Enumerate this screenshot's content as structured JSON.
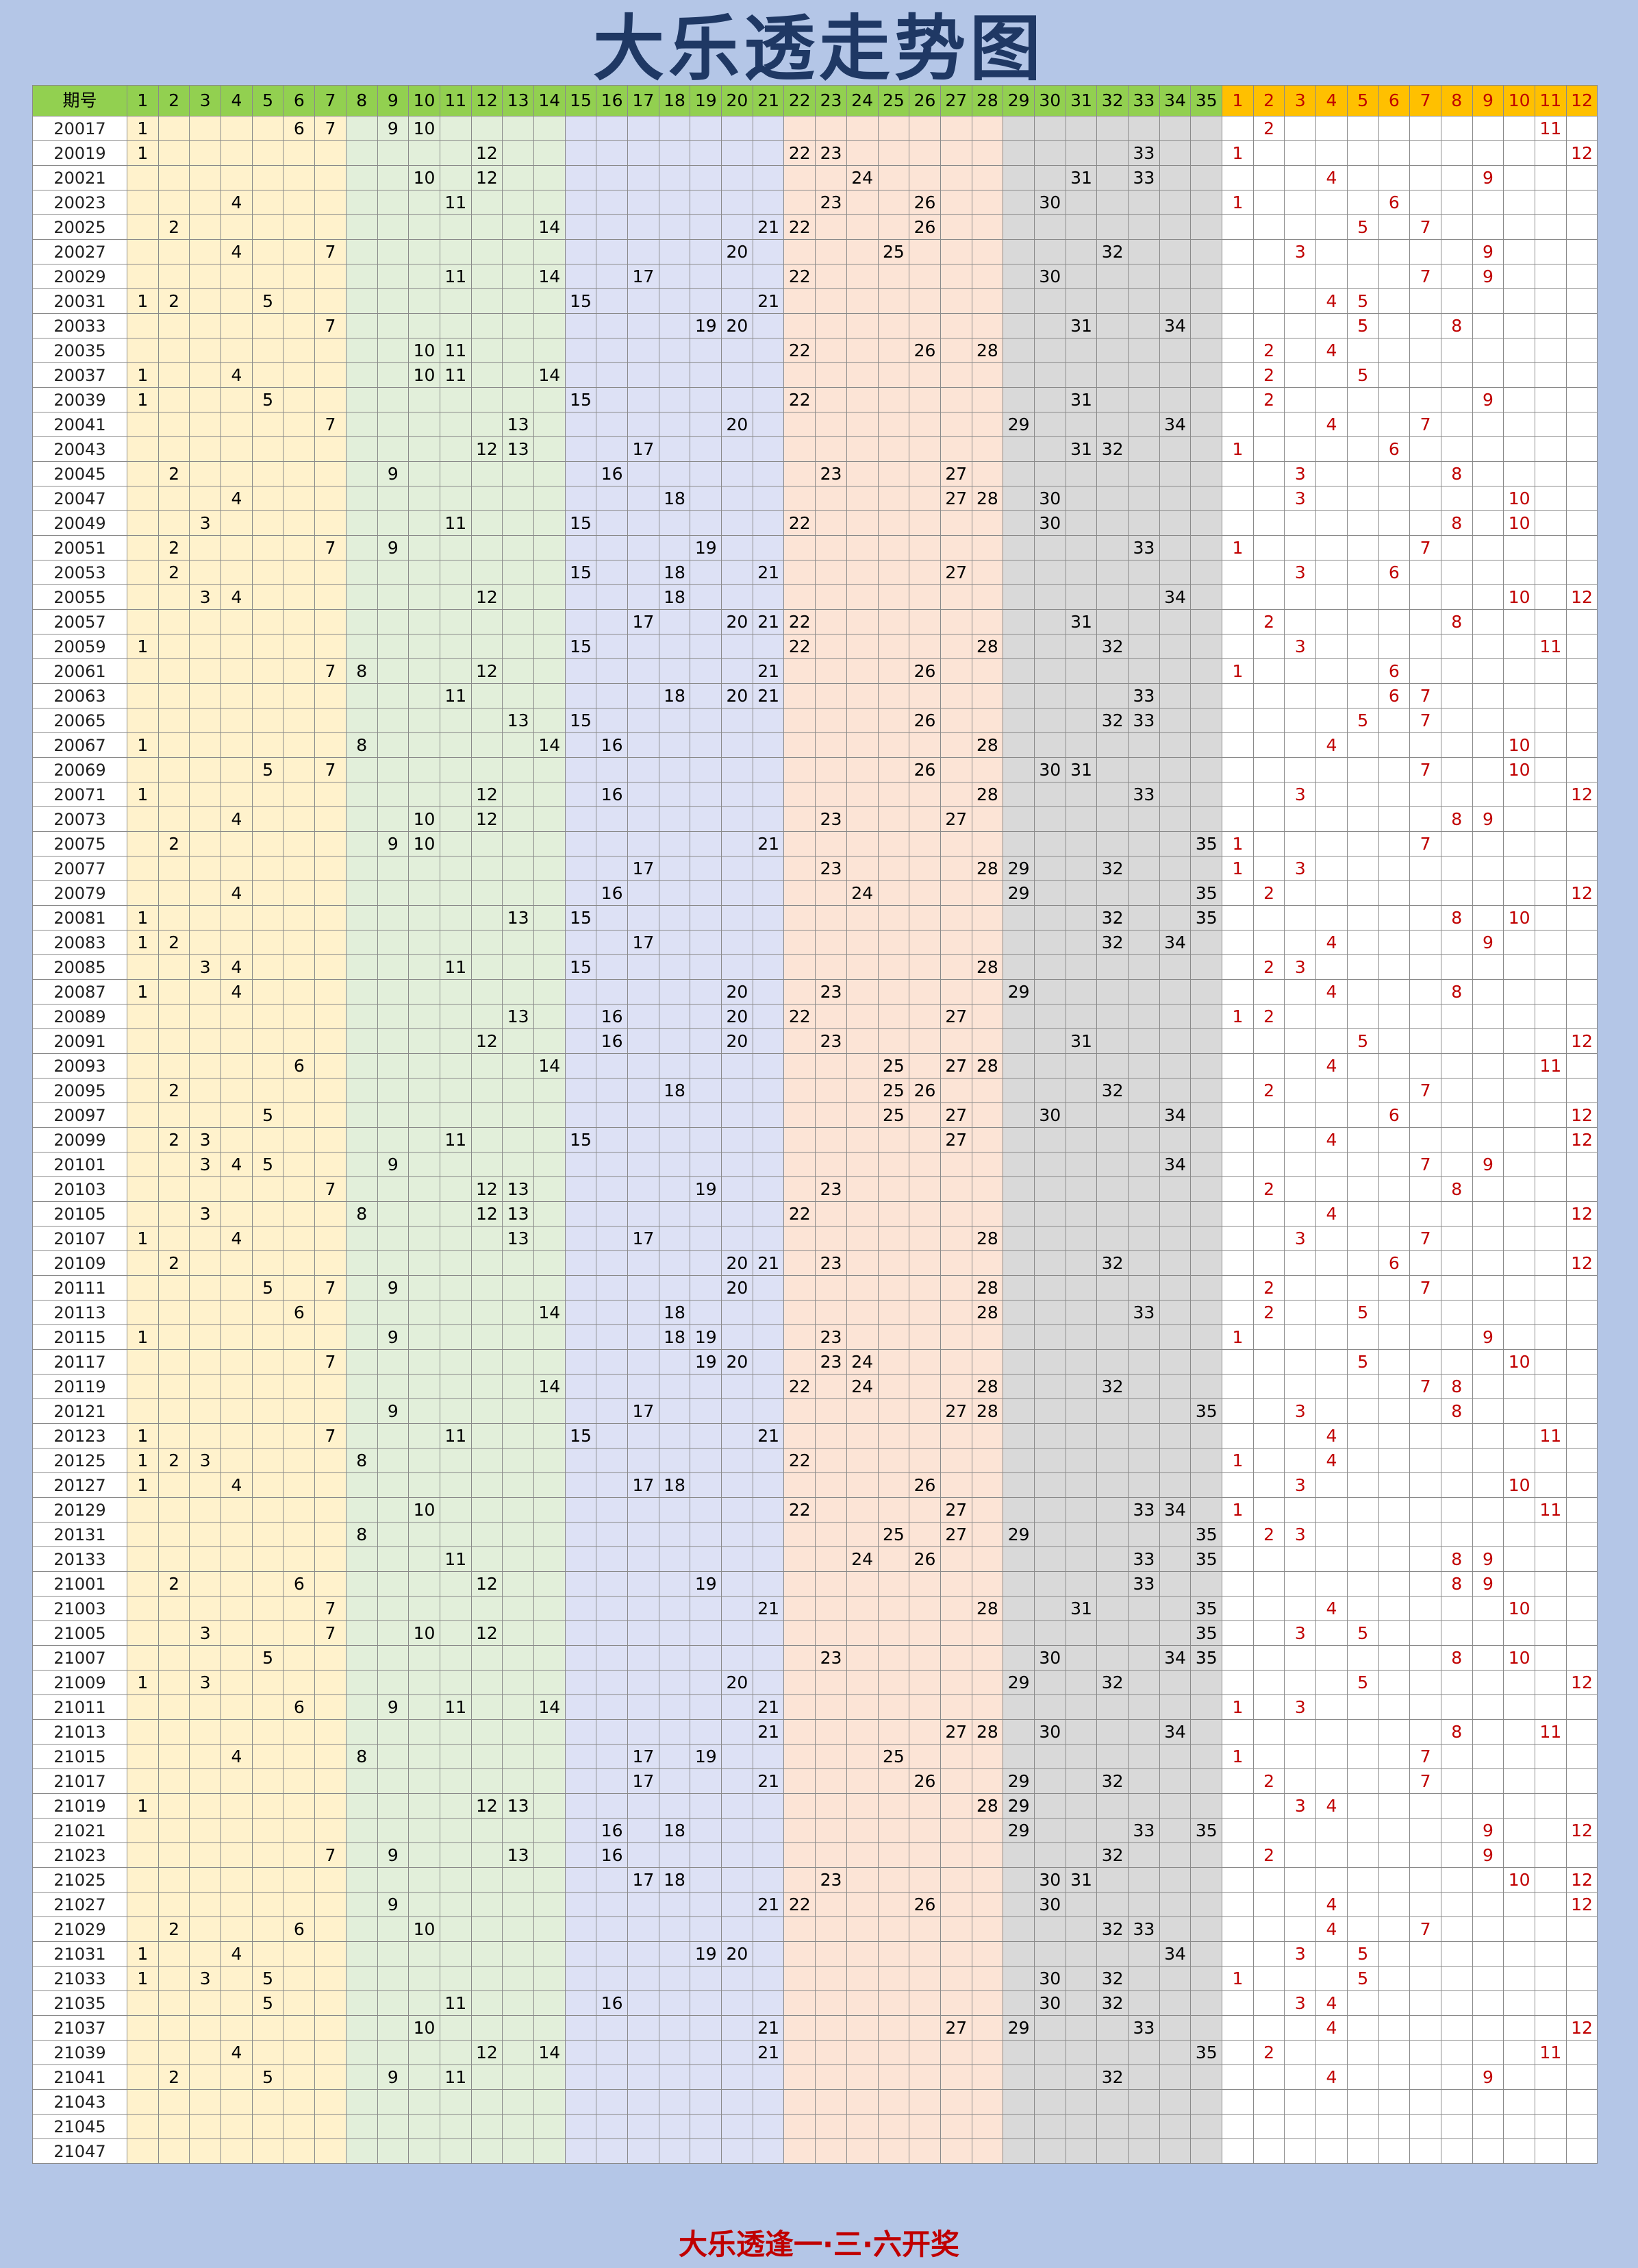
{
  "title": "大乐透走势图",
  "footer": "大乐透逢一·三·六开奖",
  "header": {
    "period_label": "期号",
    "front_numbers": [
      "1",
      "2",
      "3",
      "4",
      "5",
      "6",
      "7",
      "8",
      "9",
      "10",
      "11",
      "12",
      "13",
      "14",
      "15",
      "16",
      "17",
      "18",
      "19",
      "20",
      "21",
      "22",
      "23",
      "24",
      "25",
      "26",
      "27",
      "28",
      "29",
      "30",
      "31",
      "32",
      "33",
      "34",
      "35"
    ],
    "back_numbers": [
      "1",
      "2",
      "3",
      "4",
      "5",
      "6",
      "7",
      "8",
      "9",
      "10",
      "11",
      "12"
    ]
  },
  "colors": {
    "header_front": "#92d050",
    "header_back": "#ffc000",
    "zone_1_7": "#fff2cc",
    "zone_8_14": "#e2efda",
    "zone_15_21": "#dde1f5",
    "zone_22_28": "#fce4d6",
    "zone_29_35": "#d9d9d9",
    "back_number_text": "#c00000"
  },
  "draws": [
    {
      "period": "20017",
      "front": [
        1,
        6,
        7,
        9,
        10
      ],
      "back": [
        2,
        11
      ]
    },
    {
      "period": "20019",
      "front": [
        1,
        12,
        22,
        23,
        33
      ],
      "back": [
        1,
        12
      ]
    },
    {
      "period": "20021",
      "front": [
        10,
        12,
        24,
        31,
        33
      ],
      "back": [
        4,
        9
      ]
    },
    {
      "period": "20023",
      "front": [
        4,
        11,
        23,
        26,
        30
      ],
      "back": [
        1,
        6
      ]
    },
    {
      "period": "20025",
      "front": [
        2,
        14,
        21,
        22,
        26
      ],
      "back": [
        5,
        7
      ]
    },
    {
      "period": "20027",
      "front": [
        4,
        7,
        20,
        25,
        32
      ],
      "back": [
        3,
        9
      ]
    },
    {
      "period": "20029",
      "front": [
        11,
        14,
        17,
        22,
        30
      ],
      "back": [
        7,
        9
      ]
    },
    {
      "period": "20031",
      "front": [
        1,
        2,
        5,
        15,
        21
      ],
      "back": [
        4,
        5
      ]
    },
    {
      "period": "20033",
      "front": [
        7,
        19,
        20,
        31,
        34
      ],
      "back": [
        5,
        8
      ]
    },
    {
      "period": "20035",
      "front": [
        10,
        11,
        22,
        26,
        28
      ],
      "back": [
        2,
        4
      ]
    },
    {
      "period": "20037",
      "front": [
        1,
        4,
        10,
        11,
        14
      ],
      "back": [
        2,
        5
      ]
    },
    {
      "period": "20039",
      "front": [
        1,
        5,
        15,
        22,
        31
      ],
      "back": [
        2,
        9
      ]
    },
    {
      "period": "20041",
      "front": [
        7,
        13,
        20,
        29,
        34
      ],
      "back": [
        4,
        7
      ]
    },
    {
      "period": "20043",
      "front": [
        12,
        13,
        17,
        31,
        32
      ],
      "back": [
        1,
        6
      ]
    },
    {
      "period": "20045",
      "front": [
        2,
        9,
        16,
        23,
        27
      ],
      "back": [
        3,
        8
      ]
    },
    {
      "period": "20047",
      "front": [
        4,
        18,
        27,
        28,
        30
      ],
      "back": [
        3,
        10
      ]
    },
    {
      "period": "20049",
      "front": [
        3,
        11,
        15,
        22,
        30
      ],
      "back": [
        8,
        10
      ]
    },
    {
      "period": "20051",
      "front": [
        2,
        7,
        9,
        19,
        33
      ],
      "back": [
        1,
        7
      ]
    },
    {
      "period": "20053",
      "front": [
        2,
        15,
        18,
        21,
        27
      ],
      "back": [
        3,
        6
      ]
    },
    {
      "period": "20055",
      "front": [
        3,
        4,
        12,
        18,
        34
      ],
      "back": [
        10,
        12
      ]
    },
    {
      "period": "20057",
      "front": [
        17,
        20,
        21,
        22,
        31
      ],
      "back": [
        2,
        8
      ]
    },
    {
      "period": "20059",
      "front": [
        1,
        15,
        22,
        28,
        32
      ],
      "back": [
        3,
        11
      ]
    },
    {
      "period": "20061",
      "front": [
        7,
        8,
        12,
        21,
        26
      ],
      "back": [
        1,
        6
      ]
    },
    {
      "period": "20063",
      "front": [
        11,
        18,
        20,
        21,
        33
      ],
      "back": [
        6,
        7
      ]
    },
    {
      "period": "20065",
      "front": [
        13,
        15,
        26,
        32,
        33
      ],
      "back": [
        5,
        7
      ]
    },
    {
      "period": "20067",
      "front": [
        1,
        8,
        14,
        16,
        28
      ],
      "back": [
        4,
        10
      ]
    },
    {
      "period": "20069",
      "front": [
        5,
        7,
        26,
        30,
        31
      ],
      "back": [
        7,
        10
      ]
    },
    {
      "period": "20071",
      "front": [
        1,
        12,
        16,
        28,
        33
      ],
      "back": [
        3,
        12
      ]
    },
    {
      "period": "20073",
      "front": [
        4,
        10,
        12,
        23,
        27
      ],
      "back": [
        8,
        9
      ]
    },
    {
      "period": "20075",
      "front": [
        2,
        9,
        10,
        21,
        35
      ],
      "back": [
        1,
        7
      ]
    },
    {
      "period": "20077",
      "front": [
        17,
        23,
        28,
        29,
        32
      ],
      "back": [
        1,
        3
      ]
    },
    {
      "period": "20079",
      "front": [
        4,
        16,
        24,
        29,
        35
      ],
      "back": [
        2,
        12
      ]
    },
    {
      "period": "20081",
      "front": [
        1,
        13,
        15,
        32,
        35
      ],
      "back": [
        8,
        10
      ]
    },
    {
      "period": "20083",
      "front": [
        1,
        2,
        17,
        32,
        34
      ],
      "back": [
        4,
        9
      ]
    },
    {
      "period": "20085",
      "front": [
        3,
        4,
        11,
        15,
        28
      ],
      "back": [
        2,
        3
      ]
    },
    {
      "period": "20087",
      "front": [
        1,
        4,
        20,
        23,
        29
      ],
      "back": [
        4,
        8
      ]
    },
    {
      "period": "20089",
      "front": [
        13,
        16,
        20,
        22,
        27
      ],
      "back": [
        1,
        2
      ]
    },
    {
      "period": "20091",
      "front": [
        12,
        16,
        20,
        23,
        31
      ],
      "back": [
        5,
        12
      ]
    },
    {
      "period": "20093",
      "front": [
        6,
        14,
        25,
        27,
        28
      ],
      "back": [
        4,
        11
      ]
    },
    {
      "period": "20095",
      "front": [
        2,
        18,
        25,
        26,
        32
      ],
      "back": [
        2,
        7
      ]
    },
    {
      "period": "20097",
      "front": [
        5,
        25,
        27,
        30,
        34
      ],
      "back": [
        6,
        12
      ]
    },
    {
      "period": "20099",
      "front": [
        2,
        3,
        11,
        15,
        27
      ],
      "back": [
        4,
        12
      ]
    },
    {
      "period": "20101",
      "front": [
        3,
        4,
        5,
        9,
        34
      ],
      "back": [
        7,
        9
      ]
    },
    {
      "period": "20103",
      "front": [
        7,
        12,
        13,
        19,
        23
      ],
      "back": [
        2,
        8
      ]
    },
    {
      "period": "20105",
      "front": [
        3,
        8,
        12,
        13,
        22
      ],
      "back": [
        4,
        12
      ]
    },
    {
      "period": "20107",
      "front": [
        1,
        4,
        13,
        17,
        28
      ],
      "back": [
        3,
        7
      ]
    },
    {
      "period": "20109",
      "front": [
        2,
        20,
        21,
        23,
        32
      ],
      "back": [
        6,
        12
      ]
    },
    {
      "period": "20111",
      "front": [
        5,
        7,
        9,
        20,
        28
      ],
      "back": [
        2,
        7
      ]
    },
    {
      "period": "20113",
      "front": [
        6,
        14,
        18,
        28,
        33
      ],
      "back": [
        2,
        5
      ]
    },
    {
      "period": "20115",
      "front": [
        1,
        9,
        18,
        19,
        23
      ],
      "back": [
        1,
        9
      ]
    },
    {
      "period": "20117",
      "front": [
        7,
        19,
        20,
        23,
        24
      ],
      "back": [
        5,
        10
      ]
    },
    {
      "period": "20119",
      "front": [
        14,
        22,
        24,
        28,
        32
      ],
      "back": [
        7,
        8
      ]
    },
    {
      "period": "20121",
      "front": [
        9,
        17,
        27,
        28,
        35
      ],
      "back": [
        3,
        8
      ]
    },
    {
      "period": "20123",
      "front": [
        1,
        7,
        11,
        15,
        21
      ],
      "back": [
        4,
        11
      ]
    },
    {
      "period": "20125",
      "front": [
        1,
        2,
        3,
        8,
        22
      ],
      "back": [
        1,
        4
      ]
    },
    {
      "period": "20127",
      "front": [
        1,
        4,
        17,
        18,
        26
      ],
      "back": [
        3,
        10
      ]
    },
    {
      "period": "20129",
      "front": [
        10,
        22,
        27,
        33,
        34
      ],
      "back": [
        1,
        11
      ]
    },
    {
      "period": "20131",
      "front": [
        8,
        25,
        27,
        29,
        35
      ],
      "back": [
        2,
        3
      ]
    },
    {
      "period": "20133",
      "front": [
        11,
        24,
        26,
        33,
        35
      ],
      "back": [
        8,
        9
      ]
    },
    {
      "period": "21001",
      "front": [
        2,
        6,
        12,
        19,
        33
      ],
      "back": [
        8,
        9
      ]
    },
    {
      "period": "21003",
      "front": [
        7,
        21,
        28,
        31,
        35
      ],
      "back": [
        4,
        10
      ]
    },
    {
      "period": "21005",
      "front": [
        3,
        7,
        10,
        12,
        35
      ],
      "back": [
        3,
        5
      ]
    },
    {
      "period": "21007",
      "front": [
        5,
        23,
        30,
        34,
        35
      ],
      "back": [
        8,
        10
      ]
    },
    {
      "period": "21009",
      "front": [
        1,
        3,
        20,
        29,
        32
      ],
      "back": [
        5,
        12
      ]
    },
    {
      "period": "21011",
      "front": [
        6,
        9,
        11,
        14,
        21
      ],
      "back": [
        1,
        3
      ]
    },
    {
      "period": "21013",
      "front": [
        21,
        27,
        28,
        30,
        34
      ],
      "back": [
        8,
        11
      ]
    },
    {
      "period": "21015",
      "front": [
        4,
        8,
        17,
        19,
        25
      ],
      "back": [
        1,
        7
      ]
    },
    {
      "period": "21017",
      "front": [
        17,
        21,
        26,
        29,
        32
      ],
      "back": [
        2,
        7
      ]
    },
    {
      "period": "21019",
      "front": [
        1,
        12,
        13,
        28,
        29
      ],
      "back": [
        3,
        4
      ]
    },
    {
      "period": "21021",
      "front": [
        16,
        18,
        29,
        33,
        35
      ],
      "back": [
        9,
        12
      ]
    },
    {
      "period": "21023",
      "front": [
        7,
        9,
        13,
        16,
        32
      ],
      "back": [
        2,
        9
      ]
    },
    {
      "period": "21025",
      "front": [
        17,
        18,
        23,
        30,
        31
      ],
      "back": [
        10,
        12
      ]
    },
    {
      "period": "21027",
      "front": [
        9,
        21,
        22,
        26,
        30
      ],
      "back": [
        4,
        12
      ]
    },
    {
      "period": "21029",
      "front": [
        2,
        6,
        10,
        32,
        33
      ],
      "back": [
        4,
        7
      ]
    },
    {
      "period": "21031",
      "front": [
        1,
        4,
        19,
        20,
        34
      ],
      "back": [
        3,
        5
      ]
    },
    {
      "period": "21033",
      "front": [
        1,
        3,
        5,
        30,
        32
      ],
      "back": [
        1,
        5
      ]
    },
    {
      "period": "21035",
      "front": [
        5,
        11,
        16,
        30,
        32
      ],
      "back": [
        3,
        4
      ]
    },
    {
      "period": "21037",
      "front": [
        10,
        21,
        27,
        29,
        33
      ],
      "back": [
        4,
        12
      ]
    },
    {
      "period": "21039",
      "front": [
        4,
        12,
        14,
        21,
        35
      ],
      "back": [
        2,
        11
      ]
    },
    {
      "period": "21041",
      "front": [
        2,
        5,
        9,
        11,
        32
      ],
      "back": [
        4,
        9
      ]
    },
    {
      "period": "21043",
      "front": [],
      "back": []
    },
    {
      "period": "21045",
      "front": [],
      "back": []
    },
    {
      "period": "21047",
      "front": [],
      "back": []
    }
  ]
}
